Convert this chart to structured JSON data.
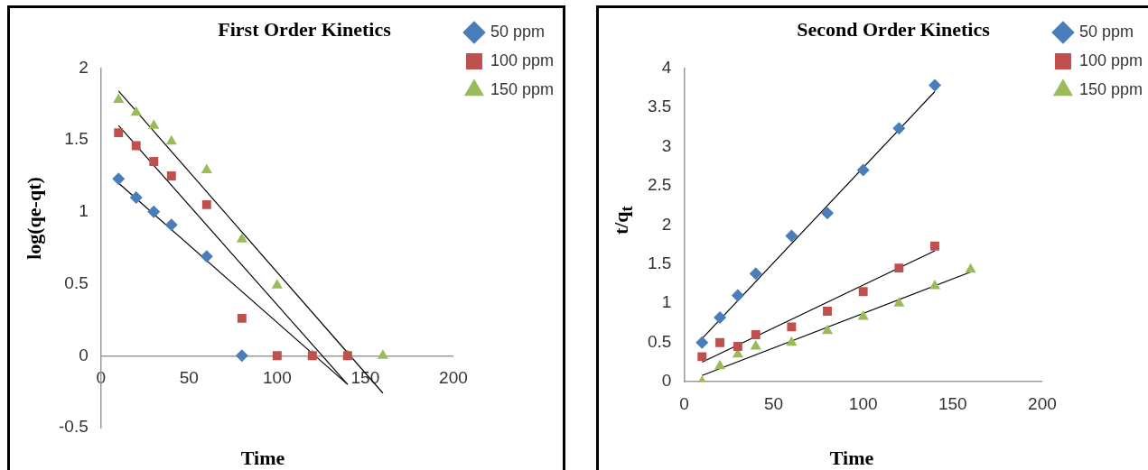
{
  "chart_data": [
    {
      "type": "scatter",
      "title": "First Order Kinetics",
      "xlabel": "Time",
      "ylabel": "log(qe-qt)",
      "xlim": [
        0,
        200
      ],
      "xticks": [
        0,
        50,
        100,
        150,
        200
      ],
      "ylim": [
        -0.5,
        2
      ],
      "yticks": [
        -0.5,
        0,
        0.5,
        1,
        1.5,
        2
      ],
      "grid": false,
      "legend": "right",
      "series": [
        {
          "name": "50 ppm",
          "color": "#4a7ebb",
          "marker": "diamond",
          "x": [
            10,
            20,
            30,
            40,
            60,
            80
          ],
          "values": [
            1.23,
            1.1,
            1.0,
            0.91,
            0.69,
            0
          ]
        },
        {
          "name": "100 ppm",
          "color": "#c0504d",
          "marker": "square",
          "x": [
            10,
            20,
            30,
            40,
            60,
            80,
            100,
            120,
            140
          ],
          "values": [
            1.55,
            1.46,
            1.35,
            1.25,
            1.05,
            0.26,
            0,
            0,
            0
          ]
        },
        {
          "name": "150 ppm",
          "color": "#9bbb59",
          "marker": "triangle",
          "x": [
            10,
            20,
            30,
            40,
            60,
            80,
            100,
            120,
            140,
            160
          ],
          "values": [
            1.78,
            1.69,
            1.6,
            1.49,
            1.29,
            0.81,
            0.49,
            0,
            0,
            0
          ]
        },
        {
          "type": "line",
          "color": "#000000",
          "marker": "none",
          "x": [
            10,
            140
          ],
          "values": [
            1.2,
            -0.2
          ]
        },
        {
          "type": "line",
          "color": "#000000",
          "marker": "none",
          "x": [
            10,
            140
          ],
          "values": [
            1.6,
            -0.2
          ]
        },
        {
          "type": "line",
          "color": "#000000",
          "marker": "none",
          "x": [
            10,
            160
          ],
          "values": [
            1.84,
            -0.26
          ]
        }
      ]
    },
    {
      "type": "scatter",
      "title": "Second Order Kinetics",
      "xlabel": "Time",
      "ylabel": "t/q$_{t}$",
      "xlim": [
        0,
        200
      ],
      "xticks": [
        0,
        50,
        100,
        150,
        200
      ],
      "ylim": [
        0,
        4
      ],
      "yticks": [
        0,
        0.5,
        1,
        1.5,
        2,
        2.5,
        3,
        3.5,
        4
      ],
      "grid": false,
      "legend": "top right",
      "series": [
        {
          "name": "50 ppm",
          "color": "#4a7ebb",
          "marker": "diamond",
          "x": [
            10,
            20,
            30,
            40,
            60,
            80,
            100,
            120,
            140
          ],
          "values": [
            0.5,
            0.82,
            1.1,
            1.38,
            1.86,
            2.15,
            2.7,
            3.23,
            3.78
          ]
        },
        {
          "name": "100 ppm",
          "color": "#c0504d",
          "marker": "square",
          "x": [
            10,
            20,
            30,
            40,
            60,
            80,
            100,
            120,
            140
          ],
          "values": [
            0.32,
            0.5,
            0.45,
            0.6,
            0.7,
            0.9,
            1.15,
            1.45,
            1.73
          ]
        },
        {
          "name": "150 ppm",
          "color": "#9bbb59",
          "marker": "triangle",
          "x": [
            10,
            20,
            30,
            40,
            60,
            80,
            100,
            120,
            140,
            160
          ],
          "values": [
            0,
            0.2,
            0.35,
            0.45,
            0.5,
            0.65,
            0.83,
            1.0,
            1.22,
            1.43
          ]
        },
        {
          "type": "line",
          "color": "#000000",
          "marker": "none",
          "x": [
            10,
            140
          ],
          "values": [
            0.55,
            3.7
          ]
        },
        {
          "type": "line",
          "color": "#000000",
          "marker": "none",
          "x": [
            10,
            140
          ],
          "values": [
            0.25,
            1.67
          ]
        },
        {
          "type": "line",
          "color": "#000000",
          "marker": "none",
          "x": [
            10,
            160
          ],
          "values": [
            0.08,
            1.4
          ]
        }
      ]
    }
  ]
}
